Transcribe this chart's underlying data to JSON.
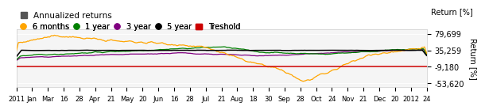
{
  "title": "Annualized returns",
  "legend_items": [
    {
      "label": "6 months",
      "color": "#FFA500"
    },
    {
      "label": "1 year",
      "color": "#008000"
    },
    {
      "label": "3 year",
      "color": "#800080"
    },
    {
      "label": "5 year",
      "color": "#000000"
    },
    {
      "label": "Treshold",
      "color": "#CC0000"
    }
  ],
  "ylabel": "Return [%]",
  "yticks": [
    79699,
    35259,
    -9180,
    -53620
  ],
  "ytick_labels": [
    "79,699",
    "35,259",
    "-9,180",
    "-53,620"
  ],
  "ylim": [
    -65000,
    92000
  ],
  "xlabel_ticks": [
    "2011",
    "Jan",
    "Mar",
    "16",
    "28",
    "Apr",
    "21",
    "May",
    "20",
    "Jun",
    "16",
    "28",
    "Jul",
    "21",
    "Aug",
    "18",
    "30",
    "Sep",
    "28",
    "Oct",
    "24",
    "Nov",
    "21",
    "Dec",
    "20",
    "2012",
    "24"
  ],
  "background_color": "#ffffff",
  "plot_bg": "#f5f5f5",
  "grid_color": "#ffffff",
  "threshold_value": -9180,
  "n_points": 400
}
